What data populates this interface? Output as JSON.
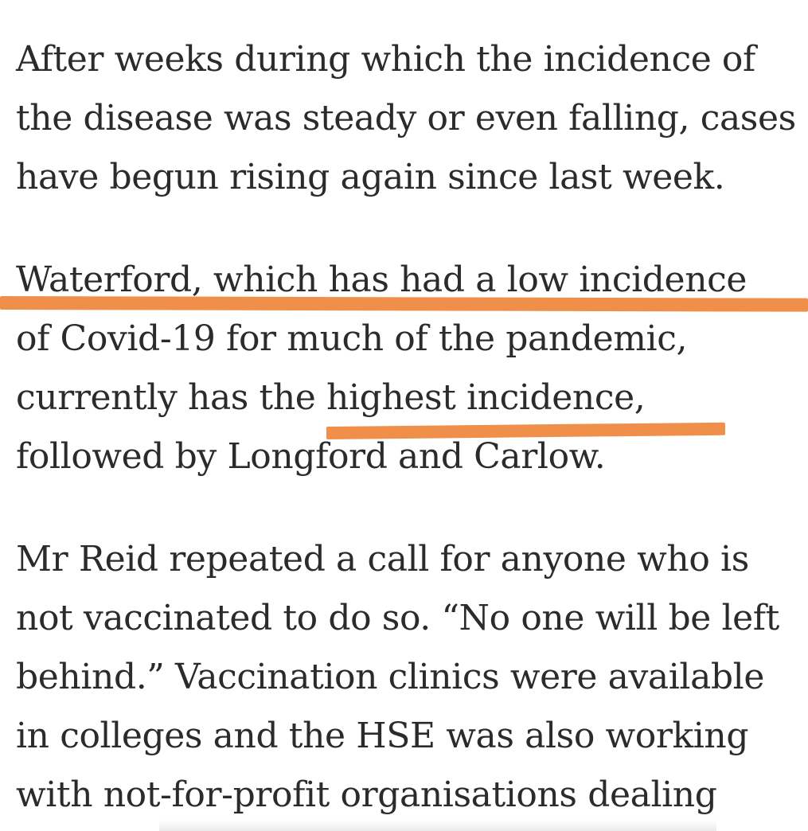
{
  "article": {
    "paragraph_1": [
      "After weeks during which the incidence of",
      "the disease was steady or even falling, cases",
      "have begun rising again since last week."
    ],
    "paragraph_2": [
      "Waterford, which has had a low incidence",
      "of Covid-19 for much of the pandemic,",
      "currently has the highest incidence,",
      "followed by Longford and Carlow."
    ],
    "paragraph_3": [
      "Mr Reid repeated a call for anyone who is",
      "not vaccinated to do so. “No one will be left",
      "behind.” Vaccination clinics were available",
      "in colleges and the HSE was also working",
      "with not-for-profit organisations dealing"
    ]
  },
  "annotations": {
    "highlight_color": "#ef8f4a"
  }
}
